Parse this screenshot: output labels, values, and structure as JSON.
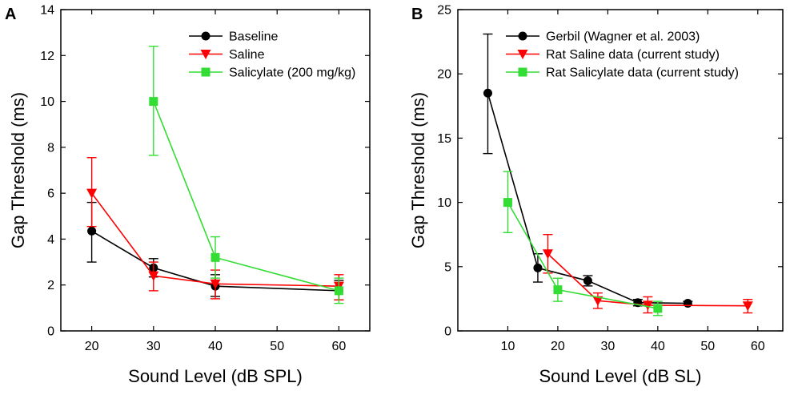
{
  "chart_data": [
    {
      "panel": "A",
      "type": "line",
      "xlabel": "Sound Level (dB SPL)",
      "ylabel": "Gap Threshold (ms)",
      "xlim": [
        15,
        65
      ],
      "ylim": [
        0,
        14
      ],
      "xticks": [
        20,
        30,
        40,
        50,
        60
      ],
      "yticks": [
        0,
        2,
        4,
        6,
        8,
        10,
        12,
        14
      ],
      "legend_position": "top-right",
      "series": [
        {
          "name": "Baseline",
          "color": "#000000",
          "marker": "circle",
          "points": [
            {
              "x": 20,
              "y": 4.35,
              "err_lo": 3.0,
              "err_hi": 5.6
            },
            {
              "x": 30,
              "y": 2.75,
              "err_lo": 2.35,
              "err_hi": 3.15
            },
            {
              "x": 40,
              "y": 1.95,
              "err_lo": 1.5,
              "err_hi": 2.45
            },
            {
              "x": 60,
              "y": 1.75,
              "err_lo": 1.35,
              "err_hi": 2.2
            }
          ]
        },
        {
          "name": "Saline",
          "color": "#ff0000",
          "marker": "triangle-down",
          "points": [
            {
              "x": 20,
              "y": 6.0,
              "err_lo": 4.55,
              "err_hi": 7.55
            },
            {
              "x": 30,
              "y": 2.4,
              "err_lo": 1.75,
              "err_hi": 3.0
            },
            {
              "x": 40,
              "y": 2.05,
              "err_lo": 1.4,
              "err_hi": 2.65
            },
            {
              "x": 60,
              "y": 1.95,
              "err_lo": 1.35,
              "err_hi": 2.45
            }
          ]
        },
        {
          "name": "Salicylate (200 mg/kg)",
          "color": "#33dd33",
          "marker": "square",
          "points": [
            {
              "x": 30,
              "y": 10.0,
              "err_lo": 7.65,
              "err_hi": 12.4
            },
            {
              "x": 40,
              "y": 3.2,
              "err_lo": 2.3,
              "err_hi": 4.1
            },
            {
              "x": 60,
              "y": 1.75,
              "err_lo": 1.2,
              "err_hi": 2.3
            }
          ]
        }
      ]
    },
    {
      "panel": "B",
      "type": "line",
      "xlabel": "Sound Level (dB SL)",
      "ylabel": "Gap Threshold (ms)",
      "xlim": [
        0,
        65
      ],
      "ylim": [
        0,
        25
      ],
      "xticks": [
        10,
        20,
        30,
        40,
        50,
        60
      ],
      "yticks": [
        0,
        5,
        10,
        15,
        20,
        25
      ],
      "legend_position": "top-right",
      "series": [
        {
          "name": "Gerbil (Wagner et al. 2003)",
          "color": "#000000",
          "marker": "circle",
          "points": [
            {
              "x": 6,
              "y": 18.5,
              "err_lo": 13.8,
              "err_hi": 23.1
            },
            {
              "x": 16,
              "y": 4.9,
              "err_lo": 3.8,
              "err_hi": 6.0
            },
            {
              "x": 26,
              "y": 3.9,
              "err_lo": 3.5,
              "err_hi": 4.3
            },
            {
              "x": 36,
              "y": 2.2,
              "err_lo": 1.95,
              "err_hi": 2.45
            },
            {
              "x": 46,
              "y": 2.15,
              "err_lo": 2.0,
              "err_hi": 2.3
            }
          ]
        },
        {
          "name": "Rat Saline data (current study)",
          "color": "#ff0000",
          "marker": "triangle-down",
          "points": [
            {
              "x": 18,
              "y": 6.0,
              "err_lo": 4.5,
              "err_hi": 7.5
            },
            {
              "x": 28,
              "y": 2.35,
              "err_lo": 1.75,
              "err_hi": 2.95
            },
            {
              "x": 38,
              "y": 2.0,
              "err_lo": 1.4,
              "err_hi": 2.65
            },
            {
              "x": 58,
              "y": 1.95,
              "err_lo": 1.4,
              "err_hi": 2.45
            }
          ]
        },
        {
          "name": "Rat Salicylate data (current study)",
          "color": "#33dd33",
          "marker": "square",
          "points": [
            {
              "x": 10,
              "y": 10.0,
              "err_lo": 7.65,
              "err_hi": 12.4
            },
            {
              "x": 20,
              "y": 3.2,
              "err_lo": 2.3,
              "err_hi": 4.1
            },
            {
              "x": 40,
              "y": 1.75,
              "err_lo": 1.2,
              "err_hi": 2.3
            }
          ]
        }
      ]
    }
  ]
}
